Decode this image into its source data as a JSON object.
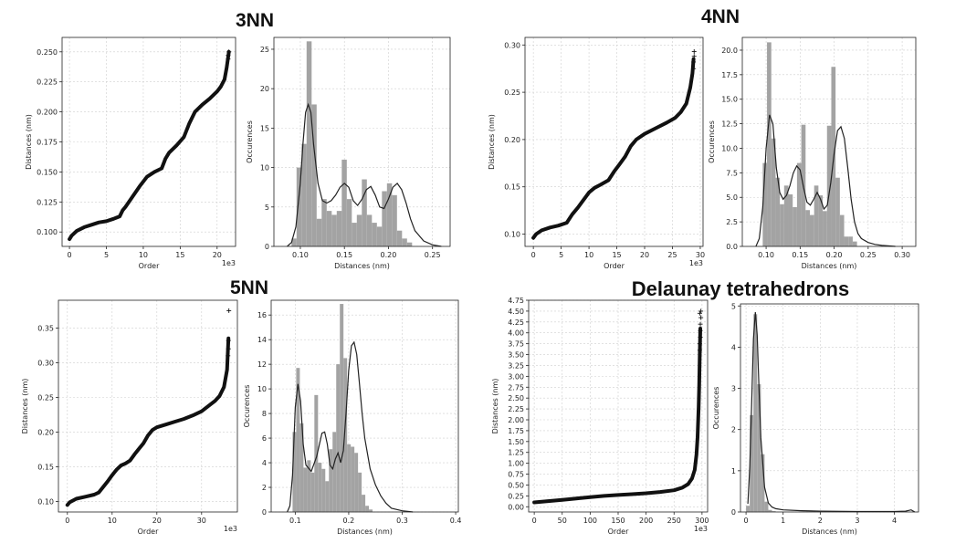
{
  "panels": [
    {
      "title": "3NN",
      "chart_data": [
        {
          "type": "line",
          "xlabel": "Order",
          "ylabel": "Distances (nm)",
          "offset_text": "1e3",
          "xlim": [
            -1,
            22.5
          ],
          "ylim": [
            0.088,
            0.262
          ],
          "xticks": [
            0,
            5,
            10,
            15,
            20
          ],
          "xtick_labels": [
            "0",
            "5",
            "10",
            "15",
            "20"
          ],
          "yticks": [
            0.1,
            0.125,
            0.15,
            0.175,
            0.2,
            0.225,
            0.25
          ],
          "ytick_labels": [
            "0.100",
            "0.125",
            "0.150",
            "0.175",
            "0.200",
            "0.225",
            "0.250"
          ],
          "grid": true,
          "x": [
            0,
            0.3,
            1,
            2,
            3,
            4,
            5,
            6,
            6.8,
            7.2,
            7.6,
            8.5,
            9.5,
            10.5,
            11.5,
            12.5,
            13,
            13.5,
            14.5,
            15.5,
            16.2,
            17,
            18,
            19,
            20,
            20.5,
            21,
            21.3,
            21.6
          ],
          "y": [
            0.094,
            0.097,
            0.101,
            0.104,
            0.106,
            0.108,
            0.109,
            0.111,
            0.113,
            0.118,
            0.121,
            0.129,
            0.138,
            0.146,
            0.15,
            0.153,
            0.161,
            0.166,
            0.172,
            0.179,
            0.19,
            0.2,
            0.206,
            0.211,
            0.217,
            0.221,
            0.227,
            0.237,
            0.25
          ],
          "outliers_x": [
            21.5,
            21.5,
            21.6
          ],
          "outliers_y": [
            0.244,
            0.247,
            0.25
          ]
        },
        {
          "type": "bar",
          "xlabel": "Distances (nm)",
          "ylabel": "Occurences",
          "xlim": [
            0.07,
            0.27
          ],
          "ylim": [
            0,
            26.5
          ],
          "xticks": [
            0.1,
            0.15,
            0.2,
            0.25
          ],
          "xtick_labels": [
            "0.10",
            "0.15",
            "0.20",
            "0.25"
          ],
          "yticks": [
            0,
            5,
            10,
            15,
            20,
            25
          ],
          "ytick_labels": [
            "0",
            "5",
            "10",
            "15",
            "20",
            "25"
          ],
          "grid": true,
          "bin_start": 0.09,
          "bin_width": 0.0057,
          "values": [
            1,
            10,
            13,
            26,
            18,
            3.5,
            6,
            4.5,
            4,
            4.5,
            11,
            6,
            3,
            4,
            8.5,
            4,
            3,
            2.5,
            7,
            8,
            6.5,
            2,
            1,
            0.5
          ],
          "kde_x": [
            0.085,
            0.09,
            0.095,
            0.1,
            0.103,
            0.106,
            0.109,
            0.112,
            0.115,
            0.12,
            0.125,
            0.13,
            0.135,
            0.14,
            0.145,
            0.15,
            0.155,
            0.16,
            0.165,
            0.17,
            0.175,
            0.18,
            0.185,
            0.19,
            0.195,
            0.2,
            0.205,
            0.21,
            0.215,
            0.22,
            0.225,
            0.23,
            0.24,
            0.25,
            0.26
          ],
          "kde_y": [
            0,
            0.5,
            2.5,
            8,
            13,
            17,
            18,
            17,
            13,
            8,
            5.8,
            5.5,
            5.8,
            6.5,
            7.5,
            8,
            7.5,
            5.8,
            5.2,
            6,
            7.2,
            7.6,
            6.5,
            5,
            4.8,
            6,
            7.5,
            8,
            7.2,
            5.5,
            3.5,
            2,
            0.7,
            0.2,
            0
          ]
        }
      ]
    },
    {
      "title": "4NN",
      "chart_data": [
        {
          "type": "line",
          "xlabel": "Order",
          "ylabel": "Distances (nm)",
          "offset_text": "1e3",
          "xlim": [
            -1.5,
            30.5
          ],
          "ylim": [
            0.087,
            0.308
          ],
          "xticks": [
            0,
            5,
            10,
            15,
            20,
            25,
            30
          ],
          "xtick_labels": [
            "0",
            "5",
            "10",
            "15",
            "20",
            "25",
            "30"
          ],
          "yticks": [
            0.1,
            0.15,
            0.2,
            0.25,
            0.3
          ],
          "ytick_labels": [
            "0.10",
            "0.15",
            "0.20",
            "0.25",
            "0.30"
          ],
          "grid": true,
          "x": [
            0,
            0.5,
            1.5,
            3,
            4.5,
            6,
            7,
            8,
            9,
            10,
            11,
            12,
            13.5,
            14.5,
            15.5,
            16.5,
            17.5,
            18.5,
            20,
            22,
            24,
            25.5,
            26.5,
            27.5,
            28.2,
            28.6,
            28.8
          ],
          "y": [
            0.096,
            0.1,
            0.104,
            0.107,
            0.109,
            0.112,
            0.121,
            0.128,
            0.136,
            0.144,
            0.149,
            0.152,
            0.157,
            0.166,
            0.174,
            0.182,
            0.193,
            0.2,
            0.206,
            0.212,
            0.218,
            0.223,
            0.229,
            0.238,
            0.255,
            0.27,
            0.285
          ],
          "outliers_x": [
            28.8,
            28.8,
            28.9,
            28.9
          ],
          "outliers_y": [
            0.275,
            0.282,
            0.288,
            0.293
          ]
        },
        {
          "type": "bar",
          "xlabel": "Distances (nm)",
          "ylabel": "Occurences",
          "xlim": [
            0.065,
            0.32
          ],
          "ylim": [
            0,
            21.3
          ],
          "xticks": [
            0.1,
            0.15,
            0.2,
            0.25,
            0.3
          ],
          "xtick_labels": [
            "0.10",
            "0.15",
            "0.20",
            "0.25",
            "0.30"
          ],
          "yticks": [
            0,
            2.5,
            5,
            7.5,
            10,
            12.5,
            15,
            17.5,
            20
          ],
          "ytick_labels": [
            "0.0",
            "2.5",
            "5.0",
            "7.5",
            "10.0",
            "12.5",
            "15.0",
            "17.5",
            "20.0"
          ],
          "grid": true,
          "bin_start": 0.095,
          "bin_width": 0.0063,
          "values": [
            8.5,
            20.8,
            11,
            7,
            4.3,
            6.2,
            5.3,
            4,
            8.5,
            12.4,
            3.7,
            3.2,
            6.2,
            5.2,
            3.6,
            12.3,
            18.3,
            7,
            3.2,
            1,
            1,
            0.5
          ],
          "kde_x": [
            0.085,
            0.09,
            0.095,
            0.1,
            0.105,
            0.11,
            0.115,
            0.12,
            0.125,
            0.13,
            0.135,
            0.14,
            0.145,
            0.15,
            0.155,
            0.16,
            0.165,
            0.17,
            0.175,
            0.18,
            0.185,
            0.19,
            0.195,
            0.2,
            0.205,
            0.21,
            0.215,
            0.22,
            0.225,
            0.23,
            0.235,
            0.24,
            0.25,
            0.26,
            0.27,
            0.29
          ],
          "kde_y": [
            0,
            0.8,
            4,
            10,
            13.4,
            12.5,
            8,
            5.5,
            4.8,
            5.2,
            6.2,
            7.5,
            8.2,
            7.8,
            6,
            4.5,
            4.2,
            4.8,
            5.5,
            4.8,
            3.8,
            4.2,
            6.5,
            9.5,
            11.8,
            12.2,
            11,
            8,
            4.8,
            2.5,
            1.3,
            0.8,
            0.4,
            0.2,
            0.1,
            0
          ]
        }
      ]
    },
    {
      "title": "5NN",
      "chart_data": [
        {
          "type": "line",
          "xlabel": "Order",
          "ylabel": "Distances (nm)",
          "offset_text": "1e3",
          "xlim": [
            -2,
            38
          ],
          "ylim": [
            0.085,
            0.39
          ],
          "xticks": [
            0,
            10,
            20,
            30
          ],
          "xtick_labels": [
            "0",
            "10",
            "20",
            "30"
          ],
          "yticks": [
            0.1,
            0.15,
            0.2,
            0.25,
            0.3,
            0.35
          ],
          "ytick_labels": [
            "0.10",
            "0.15",
            "0.20",
            "0.25",
            "0.30",
            "0.35"
          ],
          "grid": true,
          "x": [
            0,
            0.5,
            2,
            4,
            6,
            7,
            8,
            9,
            10,
            11,
            12,
            13,
            14,
            15,
            16,
            17,
            18,
            19,
            20,
            22,
            24,
            26,
            28,
            30,
            32,
            33,
            34,
            35,
            35.7,
            36
          ],
          "y": [
            0.095,
            0.099,
            0.104,
            0.107,
            0.11,
            0.113,
            0.121,
            0.129,
            0.138,
            0.146,
            0.152,
            0.155,
            0.159,
            0.168,
            0.176,
            0.184,
            0.195,
            0.203,
            0.207,
            0.211,
            0.215,
            0.219,
            0.224,
            0.23,
            0.24,
            0.245,
            0.252,
            0.265,
            0.29,
            0.335
          ],
          "outliers_x": [
            35.9,
            36,
            36,
            36.1
          ],
          "outliers_y": [
            0.31,
            0.32,
            0.332,
            0.375
          ]
        },
        {
          "type": "bar",
          "xlabel": "Distances (nm)",
          "ylabel": "Occurences",
          "xlim": [
            0.055,
            0.405
          ],
          "ylim": [
            0,
            17.2
          ],
          "xticks": [
            0.1,
            0.2,
            0.3,
            0.4
          ],
          "xtick_labels": [
            "0.1",
            "0.2",
            "0.3",
            "0.4"
          ],
          "yticks": [
            0,
            2,
            4,
            6,
            8,
            10,
            12,
            14,
            16
          ],
          "ytick_labels": [
            "0",
            "2",
            "4",
            "6",
            "8",
            "10",
            "12",
            "14",
            "16"
          ],
          "grid": true,
          "bin_start": 0.095,
          "bin_width": 0.0068,
          "values": [
            6.5,
            11.7,
            7.2,
            3.6,
            4.2,
            3.2,
            9.5,
            4,
            3.5,
            2.5,
            5.1,
            6.5,
            12,
            16.9,
            12.5,
            5.5,
            5.3,
            4.8,
            3.2,
            1.4,
            0.5,
            0.2
          ],
          "kde_x": [
            0.085,
            0.09,
            0.095,
            0.1,
            0.105,
            0.11,
            0.115,
            0.12,
            0.13,
            0.14,
            0.15,
            0.155,
            0.16,
            0.165,
            0.17,
            0.175,
            0.18,
            0.185,
            0.19,
            0.195,
            0.2,
            0.205,
            0.21,
            0.215,
            0.22,
            0.225,
            0.23,
            0.24,
            0.25,
            0.26,
            0.27,
            0.28,
            0.3,
            0.32
          ],
          "kde_y": [
            0,
            0.5,
            3,
            8.5,
            10.4,
            9,
            5.5,
            3.8,
            3.3,
            4.5,
            6.4,
            6.5,
            5.5,
            3.8,
            3.5,
            4.3,
            4.8,
            4,
            5,
            8,
            11.5,
            13.5,
            13.8,
            12.8,
            10.5,
            8,
            6,
            3.5,
            2.2,
            1.3,
            0.7,
            0.3,
            0.1,
            0
          ]
        }
      ]
    },
    {
      "title": "Delaunay tetrahedrons",
      "chart_data": [
        {
          "type": "line",
          "xlabel": "Order",
          "ylabel": "Distances (nm)",
          "offset_text": "1e3",
          "xlim": [
            -10,
            310
          ],
          "ylim": [
            -0.12,
            4.75
          ],
          "xticks": [
            0,
            50,
            100,
            150,
            200,
            250,
            300
          ],
          "xtick_labels": [
            "0",
            "50",
            "100",
            "150",
            "200",
            "250",
            "300"
          ],
          "yticks": [
            0,
            0.25,
            0.5,
            0.75,
            1,
            1.25,
            1.5,
            1.75,
            2,
            2.25,
            2.5,
            2.75,
            3,
            3.25,
            3.5,
            3.75,
            4,
            4.25,
            4.5,
            4.75
          ],
          "ytick_labels": [
            "0.00",
            "0.25",
            "0.50",
            "0.75",
            "1.00",
            "1.25",
            "1.50",
            "1.75",
            "2.00",
            "2.25",
            "2.50",
            "2.75",
            "3.00",
            "3.25",
            "3.50",
            "3.75",
            "4.00",
            "4.25",
            "4.50",
            "4.75"
          ],
          "grid": true,
          "x": [
            0,
            25,
            50,
            75,
            100,
            125,
            150,
            175,
            200,
            225,
            250,
            265,
            275,
            282,
            287,
            290,
            292,
            294,
            295,
            296,
            297
          ],
          "y": [
            0.1,
            0.13,
            0.16,
            0.19,
            0.22,
            0.25,
            0.27,
            0.29,
            0.31,
            0.34,
            0.38,
            0.44,
            0.52,
            0.65,
            0.85,
            1.2,
            1.6,
            2.3,
            2.8,
            3.5,
            4.1
          ],
          "outliers_x": [
            296,
            296,
            297,
            297,
            297,
            298,
            296,
            298
          ],
          "outliers_y": [
            3.6,
            3.75,
            3.9,
            4.05,
            4.2,
            4.35,
            4.45,
            4.5
          ]
        },
        {
          "type": "bar",
          "xlabel": "Distances (nm)",
          "ylabel": "Occurences",
          "xlim": [
            -0.15,
            4.65
          ],
          "ylim": [
            0,
            5.05
          ],
          "xticks": [
            0,
            1,
            2,
            3,
            4
          ],
          "xtick_labels": [
            "0",
            "1",
            "2",
            "3",
            "4"
          ],
          "yticks": [
            0,
            1,
            2,
            3,
            4,
            5
          ],
          "ytick_labels": [
            "0",
            "1",
            "2",
            "3",
            "4",
            "5"
          ],
          "grid": true,
          "bin_start": 0.0,
          "bin_width": 0.1,
          "values": [
            0.15,
            2.35,
            4.8,
            3.1,
            1.4,
            0.25,
            0.05,
            0.02
          ],
          "kde_x": [
            0.05,
            0.1,
            0.15,
            0.2,
            0.25,
            0.3,
            0.35,
            0.4,
            0.5,
            0.6,
            0.7,
            0.8,
            1,
            1.5,
            2,
            3,
            4,
            4.3,
            4.45,
            4.55
          ],
          "kde_y": [
            0.2,
            1.1,
            2.6,
            4.2,
            4.85,
            4.3,
            3,
            1.8,
            0.6,
            0.22,
            0.12,
            0.08,
            0.05,
            0.03,
            0.02,
            0.01,
            0.01,
            0.02,
            0.05,
            0
          ]
        }
      ]
    }
  ]
}
